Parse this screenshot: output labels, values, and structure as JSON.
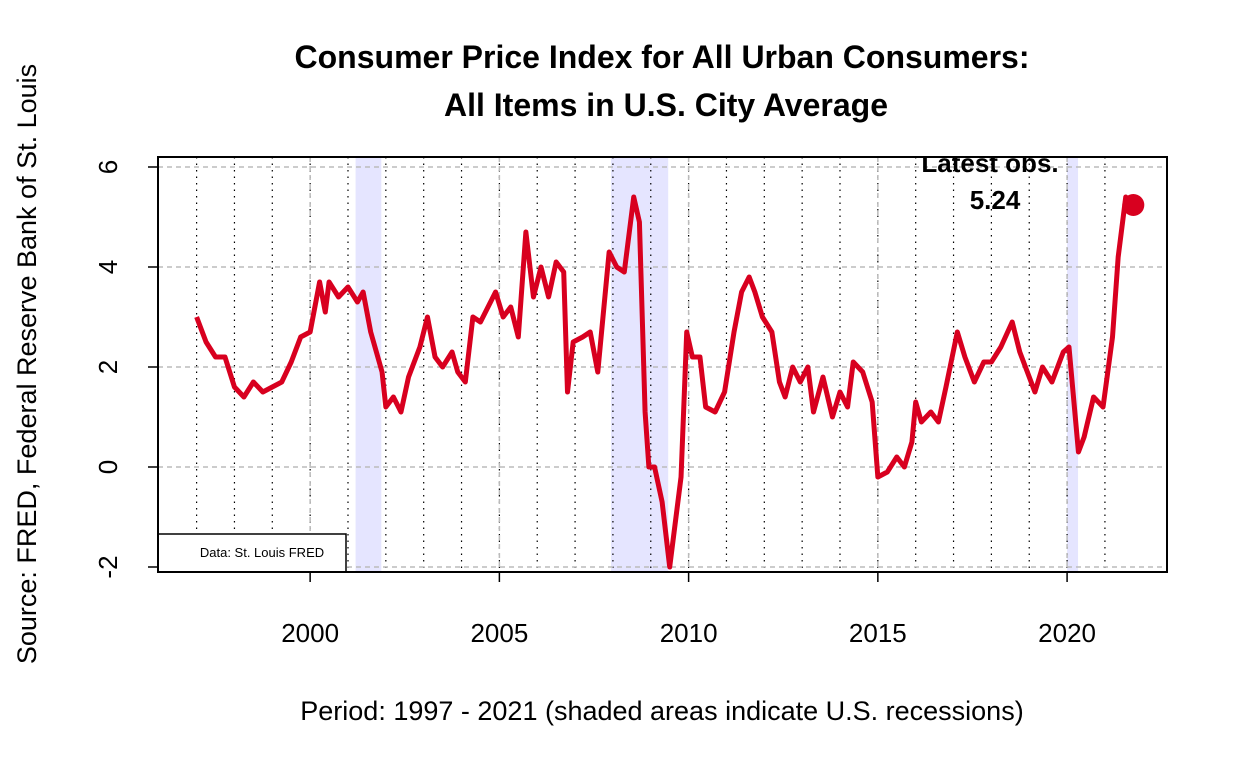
{
  "chart_data": {
    "type": "line",
    "title": [
      "Consumer Price Index for All Urban Consumers:",
      "All Items in U.S. City Average"
    ],
    "y_label": "Source: FRED, Federal Reserve Bank of St. Louis",
    "x_label": "Period: 1997 - 2021 (shaded areas indicate U.S. recessions)",
    "note": "Data: St. Louis FRED",
    "color": "#d8001f",
    "x": [
      1997.0,
      1997.25,
      1997.5,
      1997.75,
      1998.0,
      1998.25,
      1998.5,
      1998.75,
      1999.0,
      1999.25,
      1999.5,
      1999.75,
      2000.0,
      2000.25,
      2000.4,
      2000.5,
      2000.75,
      2001.0,
      2001.25,
      2001.4,
      2001.6,
      2001.9,
      2002.0,
      2002.2,
      2002.4,
      2002.6,
      2002.9,
      2003.1,
      2003.3,
      2003.5,
      2003.75,
      2003.9,
      2004.1,
      2004.3,
      2004.5,
      2004.7,
      2004.9,
      2005.1,
      2005.3,
      2005.5,
      2005.7,
      2005.9,
      2006.1,
      2006.3,
      2006.5,
      2006.7,
      2006.8,
      2006.95,
      2007.2,
      2007.4,
      2007.6,
      2007.9,
      2008.1,
      2008.3,
      2008.55,
      2008.7,
      2008.85,
      2008.95,
      2009.1,
      2009.3,
      2009.5,
      2009.6,
      2009.8,
      2009.95,
      2010.1,
      2010.3,
      2010.45,
      2010.7,
      2010.95,
      2011.2,
      2011.4,
      2011.6,
      2011.75,
      2011.95,
      2012.2,
      2012.4,
      2012.55,
      2012.75,
      2012.95,
      2013.15,
      2013.3,
      2013.55,
      2013.8,
      2014.0,
      2014.2,
      2014.35,
      2014.6,
      2014.85,
      2015.0,
      2015.25,
      2015.5,
      2015.7,
      2015.9,
      2016.0,
      2016.15,
      2016.4,
      2016.6,
      2016.8,
      2017.1,
      2017.3,
      2017.55,
      2017.8,
      2018.0,
      2018.25,
      2018.55,
      2018.75,
      2018.95,
      2019.15,
      2019.35,
      2019.6,
      2019.9,
      2020.05,
      2020.3,
      2020.45,
      2020.7,
      2020.95,
      2021.2,
      2021.35,
      2021.55,
      2021.75
    ],
    "values": [
      3.0,
      2.5,
      2.2,
      2.2,
      1.6,
      1.4,
      1.7,
      1.5,
      1.6,
      1.7,
      2.1,
      2.6,
      2.7,
      3.7,
      3.1,
      3.7,
      3.4,
      3.6,
      3.3,
      3.5,
      2.7,
      1.9,
      1.2,
      1.4,
      1.1,
      1.8,
      2.4,
      3.0,
      2.2,
      2.0,
      2.3,
      1.9,
      1.7,
      3.0,
      2.9,
      3.2,
      3.5,
      3.0,
      3.2,
      2.6,
      4.7,
      3.4,
      4.0,
      3.4,
      4.1,
      3.9,
      1.5,
      2.5,
      2.6,
      2.7,
      1.9,
      4.3,
      4.0,
      3.9,
      5.4,
      4.9,
      1.1,
      0.0,
      0.0,
      -0.7,
      -2.0,
      -1.4,
      -0.2,
      2.7,
      2.2,
      2.2,
      1.2,
      1.1,
      1.5,
      2.7,
      3.5,
      3.8,
      3.5,
      3.0,
      2.7,
      1.7,
      1.4,
      2.0,
      1.7,
      2.0,
      1.1,
      1.8,
      1.0,
      1.5,
      1.2,
      2.1,
      1.9,
      1.3,
      -0.2,
      -0.1,
      0.2,
      0.0,
      0.5,
      1.3,
      0.9,
      1.1,
      0.9,
      1.6,
      2.7,
      2.2,
      1.7,
      2.1,
      2.1,
      2.4,
      2.9,
      2.3,
      1.9,
      1.5,
      2.0,
      1.7,
      2.3,
      2.4,
      0.3,
      0.6,
      1.4,
      1.2,
      2.6,
      4.2,
      5.4,
      5.24
    ],
    "latest": {
      "label": "Latest obs.",
      "x": 2021.75,
      "value": 5.24
    },
    "recessions": [
      [
        2001.2,
        2001.88
      ],
      [
        2007.95,
        2009.46
      ],
      [
        2020.0,
        2020.29
      ]
    ],
    "recession_color": "#e5e5ff",
    "xlim": [
      1995.98,
      2022.64
    ],
    "ylim": [
      -2.1,
      6.2
    ],
    "xticks": [
      2000,
      2005,
      2010,
      2015,
      2020
    ],
    "yticks": [
      -2,
      0,
      2,
      4,
      6
    ],
    "year_gridlines": [
      1997,
      1998,
      1999,
      2000,
      2001,
      2002,
      2003,
      2004,
      2005,
      2006,
      2007,
      2008,
      2009,
      2010,
      2011,
      2012,
      2013,
      2014,
      2015,
      2016,
      2017,
      2018,
      2019,
      2020,
      2021
    ],
    "grid": true
  }
}
